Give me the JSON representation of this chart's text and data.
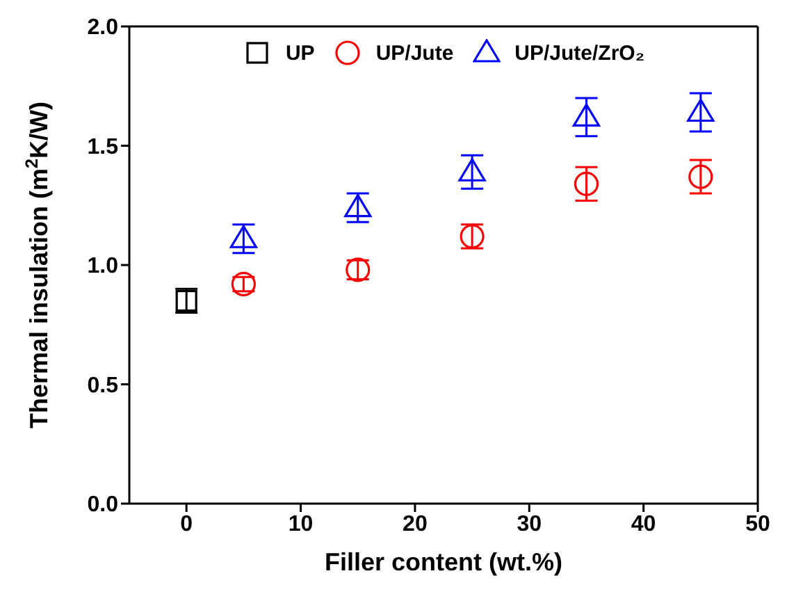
{
  "chart_data": {
    "type": "scatter",
    "xlabel": "Filler content (wt.%)",
    "ylabel": "Thermal insulation (m$^{2}$K/W)",
    "xlim": [
      -5,
      50
    ],
    "xticks": [
      0,
      10,
      20,
      30,
      40,
      50
    ],
    "ylim": [
      0,
      2.0
    ],
    "yticks": [
      {
        "value": 0,
        "label": "0.0"
      },
      {
        "value": 0.5,
        "label": "0.5"
      },
      {
        "value": 1,
        "label": "1.0"
      },
      {
        "value": 1.5,
        "label": "1.5"
      },
      {
        "value": 2,
        "label": "2.0"
      }
    ],
    "legend": "top",
    "grid": false,
    "series": [
      {
        "name": "UP",
        "color": "#000000",
        "marker": "square",
        "x": [
          0
        ],
        "values": [
          0.85
        ],
        "errors": [
          0.05
        ]
      },
      {
        "name": "UP/Jute",
        "color": "#ff0000",
        "marker": "circle",
        "x": [
          5,
          15,
          25,
          35,
          45
        ],
        "values": [
          0.92,
          0.98,
          1.12,
          1.34,
          1.37
        ],
        "errors": [
          0.03,
          0.04,
          0.05,
          0.07,
          0.07
        ]
      },
      {
        "name": "UP/Jute/ZrO₂",
        "color": "#0000ff",
        "marker": "triangle",
        "x": [
          5,
          15,
          25,
          35,
          45
        ],
        "values": [
          1.11,
          1.24,
          1.39,
          1.62,
          1.64
        ],
        "errors": [
          0.06,
          0.06,
          0.07,
          0.08,
          0.08
        ]
      }
    ]
  }
}
